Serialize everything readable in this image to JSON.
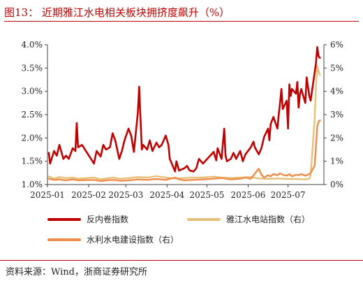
{
  "figure": {
    "title": "图13：  近期雅江水电相关板块拥挤度飙升（%）",
    "source": "资料来源：Wind，浙商证券研究所"
  },
  "colors": {
    "series_1": "#c00000",
    "series_2": "#e6c07b",
    "series_3": "#f08c4a",
    "accent": "#c00000"
  },
  "chart_data": {
    "type": "line",
    "x_tick_labels": [
      "2025-01",
      "2025-02",
      "2025-03",
      "2025-04",
      "2025-05",
      "2025-06",
      "2025-07"
    ],
    "x_range": [
      "2025-01-01",
      "2025-07-28"
    ],
    "ylim_left": [
      1.0,
      4.0
    ],
    "ylim_right": [
      0,
      6
    ],
    "y_ticks_left": [
      "1.0%",
      "1.5%",
      "2.0%",
      "2.5%",
      "3.0%",
      "3.5%",
      "4.0%"
    ],
    "y_ticks_right": [
      "0%",
      "1%",
      "2%",
      "3%",
      "4%",
      "5%",
      "6%"
    ],
    "grid": false,
    "legend_position": "bottom",
    "series": [
      {
        "name": "反内卷指数",
        "axis": "left",
        "points": [
          [
            "2025-01-02",
            1.68
          ],
          [
            "2025-01-03",
            1.45
          ],
          [
            "2025-01-06",
            1.72
          ],
          [
            "2025-01-08",
            1.62
          ],
          [
            "2025-01-10",
            1.85
          ],
          [
            "2025-01-13",
            1.55
          ],
          [
            "2025-01-15",
            1.62
          ],
          [
            "2025-01-17",
            1.55
          ],
          [
            "2025-01-20",
            1.78
          ],
          [
            "2025-01-22",
            1.72
          ],
          [
            "2025-01-23",
            2.32
          ],
          [
            "2025-01-24",
            1.8
          ],
          [
            "2025-01-27",
            1.85
          ],
          [
            "2025-02-05",
            1.45
          ],
          [
            "2025-02-07",
            1.72
          ],
          [
            "2025-02-10",
            1.6
          ],
          [
            "2025-02-12",
            1.85
          ],
          [
            "2025-02-14",
            1.75
          ],
          [
            "2025-02-17",
            1.8
          ],
          [
            "2025-02-19",
            2.1
          ],
          [
            "2025-02-21",
            1.95
          ],
          [
            "2025-02-24",
            1.55
          ],
          [
            "2025-02-26",
            1.72
          ],
          [
            "2025-02-28",
            1.95
          ],
          [
            "2025-03-03",
            2.2
          ],
          [
            "2025-03-05",
            2.05
          ],
          [
            "2025-03-07",
            1.7
          ],
          [
            "2025-03-10",
            2.55
          ],
          [
            "2025-03-11",
            3.1
          ],
          [
            "2025-03-12",
            2.4
          ],
          [
            "2025-03-13",
            1.75
          ],
          [
            "2025-03-14",
            1.85
          ],
          [
            "2025-03-17",
            1.75
          ],
          [
            "2025-03-19",
            1.95
          ],
          [
            "2025-03-21",
            1.72
          ],
          [
            "2025-03-24",
            1.9
          ],
          [
            "2025-03-26",
            1.8
          ],
          [
            "2025-03-28",
            1.85
          ],
          [
            "2025-03-31",
            2.05
          ],
          [
            "2025-04-02",
            1.85
          ],
          [
            "2025-04-03",
            1.55
          ],
          [
            "2025-04-07",
            1.28
          ],
          [
            "2025-04-08",
            1.5
          ],
          [
            "2025-04-10",
            1.3
          ],
          [
            "2025-04-14",
            1.35
          ],
          [
            "2025-04-16",
            1.4
          ],
          [
            "2025-04-18",
            1.3
          ],
          [
            "2025-04-21",
            1.28
          ],
          [
            "2025-04-23",
            1.35
          ],
          [
            "2025-04-25",
            1.55
          ],
          [
            "2025-04-28",
            1.45
          ],
          [
            "2025-05-06",
            1.7
          ],
          [
            "2025-05-08",
            1.52
          ],
          [
            "2025-05-09",
            1.78
          ],
          [
            "2025-05-12",
            1.55
          ],
          [
            "2025-05-14",
            2.2
          ],
          [
            "2025-05-15",
            1.62
          ],
          [
            "2025-05-16",
            1.5
          ],
          [
            "2025-05-19",
            1.55
          ],
          [
            "2025-05-21",
            1.68
          ],
          [
            "2025-05-23",
            1.55
          ],
          [
            "2025-05-26",
            1.72
          ],
          [
            "2025-05-28",
            1.5
          ],
          [
            "2025-05-30",
            1.65
          ],
          [
            "2025-06-03",
            1.8
          ],
          [
            "2025-06-05",
            1.92
          ],
          [
            "2025-06-06",
            1.8
          ],
          [
            "2025-06-09",
            1.65
          ],
          [
            "2025-06-11",
            1.78
          ],
          [
            "2025-06-13",
            2.02
          ],
          [
            "2025-06-16",
            2.2
          ],
          [
            "2025-06-17",
            1.95
          ],
          [
            "2025-06-18",
            2.3
          ],
          [
            "2025-06-20",
            2.45
          ],
          [
            "2025-06-23",
            2.2
          ],
          [
            "2025-06-24",
            2.5
          ],
          [
            "2025-06-25",
            2.75
          ],
          [
            "2025-06-26",
            3.05
          ],
          [
            "2025-06-27",
            2.62
          ],
          [
            "2025-06-30",
            2.8
          ],
          [
            "2025-07-01",
            2.2
          ],
          [
            "2025-07-02",
            3.15
          ],
          [
            "2025-07-03",
            2.9
          ],
          [
            "2025-07-04",
            3.05
          ],
          [
            "2025-07-07",
            2.95
          ],
          [
            "2025-07-08",
            3.2
          ],
          [
            "2025-07-09",
            2.65
          ],
          [
            "2025-07-10",
            2.95
          ],
          [
            "2025-07-11",
            3.05
          ],
          [
            "2025-07-14",
            2.75
          ],
          [
            "2025-07-15",
            3.3
          ],
          [
            "2025-07-16",
            3.1
          ],
          [
            "2025-07-17",
            2.9
          ],
          [
            "2025-07-18",
            2.8
          ],
          [
            "2025-07-21",
            3.4
          ],
          [
            "2025-07-22",
            3.6
          ],
          [
            "2025-07-23",
            3.95
          ],
          [
            "2025-07-24",
            3.75
          ],
          [
            "2025-07-25",
            3.72
          ]
        ]
      },
      {
        "name": "雅江水电站指数（右）",
        "axis": "right",
        "points": [
          [
            "2025-01-02",
            0.35
          ],
          [
            "2025-01-06",
            0.25
          ],
          [
            "2025-01-10",
            0.32
          ],
          [
            "2025-01-15",
            0.28
          ],
          [
            "2025-01-20",
            0.3
          ],
          [
            "2025-01-24",
            0.25
          ],
          [
            "2025-02-05",
            0.3
          ],
          [
            "2025-02-10",
            0.22
          ],
          [
            "2025-02-14",
            0.26
          ],
          [
            "2025-02-20",
            0.3
          ],
          [
            "2025-02-25",
            0.24
          ],
          [
            "2025-03-03",
            0.28
          ],
          [
            "2025-03-10",
            0.32
          ],
          [
            "2025-03-17",
            0.3
          ],
          [
            "2025-03-24",
            0.36
          ],
          [
            "2025-03-31",
            0.3
          ],
          [
            "2025-04-07",
            0.26
          ],
          [
            "2025-04-14",
            0.28
          ],
          [
            "2025-04-21",
            0.3
          ],
          [
            "2025-04-28",
            0.3
          ],
          [
            "2025-05-06",
            0.34
          ],
          [
            "2025-05-12",
            0.3
          ],
          [
            "2025-05-19",
            0.28
          ],
          [
            "2025-05-26",
            0.3
          ],
          [
            "2025-06-03",
            0.32
          ],
          [
            "2025-06-09",
            0.26
          ],
          [
            "2025-06-16",
            0.24
          ],
          [
            "2025-06-23",
            0.26
          ],
          [
            "2025-06-30",
            0.24
          ],
          [
            "2025-07-07",
            0.24
          ],
          [
            "2025-07-14",
            0.22
          ],
          [
            "2025-07-17",
            0.25
          ],
          [
            "2025-07-18",
            0.4
          ],
          [
            "2025-07-21",
            2.8
          ],
          [
            "2025-07-22",
            4.2
          ],
          [
            "2025-07-23",
            5.1
          ],
          [
            "2025-07-24",
            4.85
          ],
          [
            "2025-07-25",
            4.7
          ]
        ]
      },
      {
        "name": "水利水电建设指数（右）",
        "axis": "right",
        "points": [
          [
            "2025-01-02",
            0.25
          ],
          [
            "2025-01-06",
            0.2
          ],
          [
            "2025-01-10",
            0.22
          ],
          [
            "2025-01-15",
            0.18
          ],
          [
            "2025-01-20",
            0.22
          ],
          [
            "2025-01-24",
            0.18
          ],
          [
            "2025-02-05",
            0.2
          ],
          [
            "2025-02-10",
            0.15
          ],
          [
            "2025-02-14",
            0.18
          ],
          [
            "2025-02-20",
            0.2
          ],
          [
            "2025-02-25",
            0.16
          ],
          [
            "2025-03-03",
            0.18
          ],
          [
            "2025-03-10",
            0.22
          ],
          [
            "2025-03-17",
            0.2
          ],
          [
            "2025-03-24",
            0.24
          ],
          [
            "2025-03-31",
            0.2
          ],
          [
            "2025-04-07",
            0.3
          ],
          [
            "2025-04-10",
            0.22
          ],
          [
            "2025-04-14",
            0.18
          ],
          [
            "2025-04-21",
            0.2
          ],
          [
            "2025-04-28",
            0.22
          ],
          [
            "2025-05-06",
            0.25
          ],
          [
            "2025-05-12",
            0.28
          ],
          [
            "2025-05-19",
            0.22
          ],
          [
            "2025-05-26",
            0.25
          ],
          [
            "2025-05-30",
            0.3
          ],
          [
            "2025-06-03",
            0.25
          ],
          [
            "2025-06-09",
            0.68
          ],
          [
            "2025-06-11",
            0.42
          ],
          [
            "2025-06-13",
            0.3
          ],
          [
            "2025-06-16",
            0.4
          ],
          [
            "2025-06-18",
            0.35
          ],
          [
            "2025-06-20",
            0.45
          ],
          [
            "2025-06-23",
            0.4
          ],
          [
            "2025-06-25",
            0.48
          ],
          [
            "2025-06-27",
            0.42
          ],
          [
            "2025-06-30",
            0.38
          ],
          [
            "2025-07-02",
            0.45
          ],
          [
            "2025-07-04",
            0.35
          ],
          [
            "2025-07-07",
            0.42
          ],
          [
            "2025-07-09",
            0.4
          ],
          [
            "2025-07-11",
            0.45
          ],
          [
            "2025-07-14",
            0.38
          ],
          [
            "2025-07-16",
            0.42
          ],
          [
            "2025-07-18",
            0.5
          ],
          [
            "2025-07-21",
            0.8
          ],
          [
            "2025-07-22",
            1.6
          ],
          [
            "2025-07-23",
            2.5
          ],
          [
            "2025-07-24",
            2.7
          ],
          [
            "2025-07-25",
            2.75
          ]
        ]
      }
    ]
  }
}
